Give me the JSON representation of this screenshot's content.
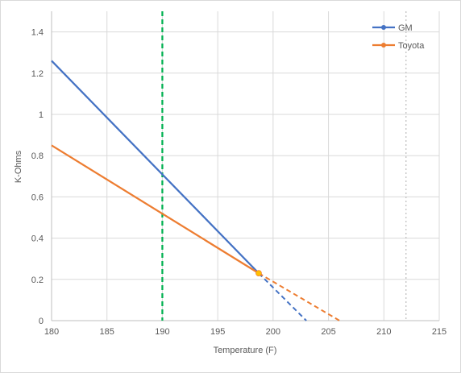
{
  "chart_data": {
    "type": "line",
    "title": "",
    "xlabel": "Temperature (F)",
    "ylabel": "K-Ohms",
    "xlim": [
      180,
      215
    ],
    "ylim": [
      0,
      1.5
    ],
    "xticks": [
      180,
      185,
      190,
      195,
      200,
      205,
      210,
      215
    ],
    "yticks": [
      0,
      0.2,
      0.4,
      0.6,
      0.8,
      1,
      1.2,
      1.4
    ],
    "ytick_labels": [
      "0",
      "0.2",
      "0.4",
      "0.6",
      "0.8",
      "1",
      "1.2",
      "1.4"
    ],
    "grid": true,
    "legend_position": "top-right",
    "series": [
      {
        "name": "GM",
        "color": "#4472C4",
        "solid": [
          [
            180,
            1.26
          ],
          [
            198.7,
            0.23
          ]
        ],
        "dashed": [
          [
            198.7,
            0.23
          ],
          [
            203,
            0
          ]
        ]
      },
      {
        "name": "Toyota",
        "color": "#ED7D31",
        "solid": [
          [
            180,
            0.85
          ],
          [
            198.7,
            0.23
          ]
        ],
        "dashed": [
          [
            198.7,
            0.23
          ],
          [
            206,
            0
          ]
        ]
      }
    ],
    "intersection_point": {
      "x": 198.7,
      "y": 0.23,
      "color": "#FFC000"
    },
    "reference_lines": [
      {
        "x": 190,
        "color": "#00B050",
        "style": "dashed"
      },
      {
        "x": 212,
        "color": "#BFBFBF",
        "style": "dotted"
      }
    ]
  }
}
